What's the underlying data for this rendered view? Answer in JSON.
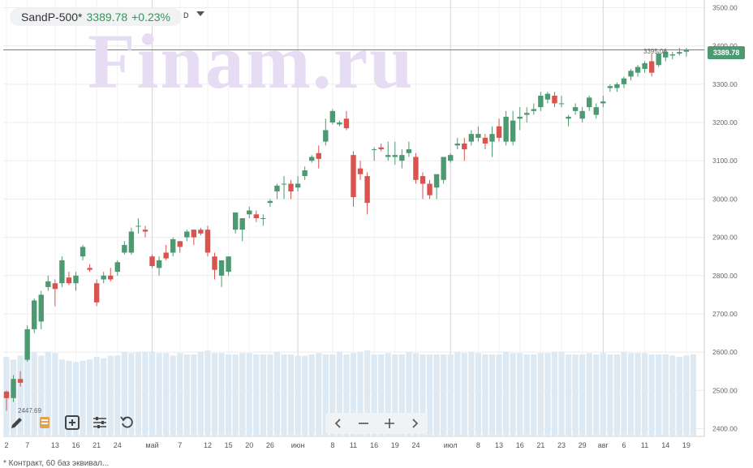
{
  "header": {
    "ticker": "SandP-500*",
    "last_price": "3389.78",
    "change": "+0.23%",
    "period": "D"
  },
  "watermark": "Finam.ru",
  "last_price_tag": "3389.78",
  "max_label": "3395.06",
  "min_label": "2447.69",
  "footnote": "* Контракт, 60 баз эквивал...",
  "colors": {
    "up": "#4d9a72",
    "down": "#d9534f",
    "volume": "#dde9f3",
    "grid": "#ececec",
    "price_line": "#4d9a72"
  },
  "toolbar_icons": [
    "pencil-icon",
    "layers-icon",
    "add-indicator-icon",
    "settings-sliders-icon",
    "reset-icon"
  ],
  "nav_icons": [
    "chevron-left-icon",
    "zoom-out-icon",
    "zoom-in-icon",
    "chevron-right-icon"
  ],
  "chart_data": {
    "type": "candlestick",
    "y_range": [
      2380,
      3520
    ],
    "yticks": [
      2400,
      2500,
      2600,
      2700,
      2800,
      2900,
      3000,
      3100,
      3200,
      3300,
      3400,
      3500
    ],
    "ytick_labels": [
      "2400.00",
      "2500.00",
      "2600.00",
      "2700.00",
      "2800.00",
      "2900.00",
      "3000.00",
      "3100.00",
      "3200.00",
      "3300.00",
      "3400.00",
      "3500.00"
    ],
    "x_ticks": [
      {
        "i": 0,
        "label": "2"
      },
      {
        "i": 3,
        "label": "7"
      },
      {
        "i": 7,
        "label": "13"
      },
      {
        "i": 10,
        "label": "16"
      },
      {
        "i": 13,
        "label": "21"
      },
      {
        "i": 16,
        "label": "24"
      },
      {
        "i": 21,
        "label": "май"
      },
      {
        "i": 25,
        "label": "7"
      },
      {
        "i": 29,
        "label": "12"
      },
      {
        "i": 32,
        "label": "15"
      },
      {
        "i": 35,
        "label": "20"
      },
      {
        "i": 38,
        "label": "26"
      },
      {
        "i": 42,
        "label": "июн"
      },
      {
        "i": 47,
        "label": "8"
      },
      {
        "i": 50,
        "label": "11"
      },
      {
        "i": 53,
        "label": "16"
      },
      {
        "i": 56,
        "label": "19"
      },
      {
        "i": 59,
        "label": "24"
      },
      {
        "i": 64,
        "label": "июл"
      },
      {
        "i": 68,
        "label": "8"
      },
      {
        "i": 71,
        "label": "13"
      },
      {
        "i": 74,
        "label": "16"
      },
      {
        "i": 77,
        "label": "21"
      },
      {
        "i": 80,
        "label": "23"
      },
      {
        "i": 83,
        "label": "29"
      },
      {
        "i": 86,
        "label": "авг"
      },
      {
        "i": 89,
        "label": "6"
      },
      {
        "i": 92,
        "label": "11"
      },
      {
        "i": 95,
        "label": "14"
      },
      {
        "i": 98,
        "label": "19"
      }
    ],
    "month_dividers": [
      21,
      42,
      64,
      86
    ],
    "candles": [
      [
        2497,
        2500,
        2447,
        2480
      ],
      [
        2480,
        2540,
        2470,
        2530
      ],
      [
        2530,
        2550,
        2510,
        2520
      ],
      [
        2580,
        2670,
        2575,
        2660
      ],
      [
        2660,
        2740,
        2650,
        2735
      ],
      [
        2680,
        2760,
        2660,
        2750
      ],
      [
        2770,
        2800,
        2760,
        2785
      ],
      [
        2780,
        2790,
        2720,
        2765
      ],
      [
        2780,
        2850,
        2770,
        2840
      ],
      [
        2795,
        2810,
        2775,
        2780
      ],
      [
        2780,
        2810,
        2760,
        2800
      ],
      [
        2850,
        2880,
        2840,
        2875
      ],
      [
        2820,
        2830,
        2810,
        2815
      ],
      [
        2780,
        2790,
        2720,
        2730
      ],
      [
        2790,
        2810,
        2780,
        2800
      ],
      [
        2800,
        2820,
        2785,
        2790
      ],
      [
        2810,
        2840,
        2800,
        2835
      ],
      [
        2860,
        2890,
        2855,
        2880
      ],
      [
        2860,
        2925,
        2855,
        2915
      ],
      [
        2930,
        2950,
        2910,
        2930
      ],
      [
        2920,
        2930,
        2900,
        2915
      ],
      [
        2850,
        2855,
        2820,
        2825
      ],
      [
        2820,
        2850,
        2800,
        2840
      ],
      [
        2860,
        2880,
        2840,
        2845
      ],
      [
        2860,
        2900,
        2850,
        2895
      ],
      [
        2890,
        2890,
        2860,
        2875
      ],
      [
        2900,
        2920,
        2890,
        2915
      ],
      [
        2920,
        2920,
        2880,
        2900
      ],
      [
        2920,
        2925,
        2905,
        2910
      ],
      [
        2920,
        2930,
        2850,
        2860
      ],
      [
        2850,
        2860,
        2790,
        2815
      ],
      [
        2800,
        2840,
        2770,
        2840
      ],
      [
        2810,
        2850,
        2800,
        2850
      ],
      [
        2920,
        2960,
        2910,
        2965
      ],
      [
        2920,
        2950,
        2890,
        2950
      ],
      [
        2960,
        2980,
        2950,
        2970
      ],
      [
        2960,
        2970,
        2940,
        2950
      ],
      [
        2950,
        2960,
        2930,
        2950
      ],
      [
        2990,
        3000,
        2980,
        2995
      ],
      [
        3020,
        3040,
        3000,
        3035
      ],
      [
        3040,
        3060,
        3000,
        3040
      ],
      [
        3040,
        3050,
        3000,
        3020
      ],
      [
        3030,
        3060,
        3020,
        3040
      ],
      [
        3060,
        3085,
        3050,
        3075
      ],
      [
        3100,
        3115,
        3095,
        3110
      ],
      [
        3120,
        3140,
        3080,
        3105
      ],
      [
        3150,
        3210,
        3140,
        3180
      ],
      [
        3200,
        3235,
        3195,
        3230
      ],
      [
        3195,
        3205,
        3190,
        3200
      ],
      [
        3210,
        3230,
        3180,
        3185
      ],
      [
        3115,
        3125,
        2980,
        3005
      ],
      [
        3080,
        3100,
        3050,
        3065
      ],
      [
        3060,
        3070,
        2960,
        2990
      ],
      [
        3130,
        3135,
        3100,
        3130
      ],
      [
        3135,
        3145,
        3125,
        3130
      ],
      [
        3110,
        3150,
        3100,
        3115
      ],
      [
        3110,
        3150,
        3090,
        3115
      ],
      [
        3100,
        3130,
        3080,
        3115
      ],
      [
        3120,
        3150,
        3110,
        3130
      ],
      [
        3110,
        3120,
        3040,
        3050
      ],
      [
        3060,
        3070,
        3000,
        3040
      ],
      [
        3040,
        3050,
        3000,
        3010
      ],
      [
        3030,
        3060,
        3000,
        3065
      ],
      [
        3050,
        3110,
        3040,
        3110
      ],
      [
        3100,
        3120,
        3095,
        3115
      ],
      [
        3140,
        3160,
        3130,
        3145
      ],
      [
        3145,
        3160,
        3100,
        3130
      ],
      [
        3150,
        3180,
        3140,
        3170
      ],
      [
        3160,
        3190,
        3150,
        3170
      ],
      [
        3160,
        3170,
        3130,
        3145
      ],
      [
        3150,
        3190,
        3110,
        3170
      ],
      [
        3190,
        3210,
        3150,
        3160
      ],
      [
        3150,
        3230,
        3140,
        3215
      ],
      [
        3150,
        3230,
        3140,
        3205
      ],
      [
        3210,
        3240,
        3180,
        3215
      ],
      [
        3220,
        3240,
        3200,
        3225
      ],
      [
        3230,
        3250,
        3220,
        3235
      ],
      [
        3240,
        3280,
        3230,
        3270
      ],
      [
        3260,
        3280,
        3250,
        3275
      ],
      [
        3270,
        3280,
        3240,
        3250
      ],
      [
        3250,
        3270,
        3240,
        3250
      ],
      [
        3210,
        3220,
        3190,
        3215
      ],
      [
        3230,
        3250,
        3220,
        3240
      ],
      [
        3210,
        3240,
        3200,
        3230
      ],
      [
        3240,
        3270,
        3230,
        3265
      ],
      [
        3220,
        3250,
        3210,
        3240
      ],
      [
        3250,
        3270,
        3240,
        3255
      ],
      [
        3290,
        3300,
        3280,
        3295
      ],
      [
        3290,
        3305,
        3280,
        3300
      ],
      [
        3300,
        3320,
        3290,
        3315
      ],
      [
        3320,
        3340,
        3310,
        3335
      ],
      [
        3330,
        3350,
        3320,
        3345
      ],
      [
        3340,
        3360,
        3330,
        3355
      ],
      [
        3360,
        3380,
        3320,
        3330
      ],
      [
        3350,
        3385,
        3345,
        3380
      ],
      [
        3370,
        3390,
        3360,
        3385
      ],
      [
        3375,
        3385,
        3365,
        3378
      ],
      [
        3380,
        3395,
        3375,
        3384
      ],
      [
        3385,
        3395,
        3372,
        3389
      ]
    ],
    "volumes": [
      0.62,
      0.6,
      0.63,
      0.66,
      0.66,
      0.63,
      0.66,
      0.65,
      0.6,
      0.59,
      0.58,
      0.59,
      0.6,
      0.62,
      0.61,
      0.63,
      0.63,
      0.66,
      0.65,
      0.66,
      0.66,
      0.66,
      0.65,
      0.65,
      0.63,
      0.65,
      0.64,
      0.64,
      0.66,
      0.67,
      0.65,
      0.65,
      0.64,
      0.64,
      0.65,
      0.65,
      0.64,
      0.64,
      0.64,
      0.66,
      0.64,
      0.64,
      0.63,
      0.63,
      0.64,
      0.65,
      0.64,
      0.64,
      0.66,
      0.64,
      0.65,
      0.66,
      0.67,
      0.64,
      0.64,
      0.65,
      0.64,
      0.64,
      0.66,
      0.65,
      0.64,
      0.64,
      0.64,
      0.64,
      0.64,
      0.66,
      0.65,
      0.66,
      0.65,
      0.64,
      0.64,
      0.64,
      0.66,
      0.65,
      0.65,
      0.64,
      0.64,
      0.65,
      0.65,
      0.66,
      0.66,
      0.64,
      0.64,
      0.64,
      0.65,
      0.64,
      0.65,
      0.64,
      0.64,
      0.66,
      0.65,
      0.65,
      0.65,
      0.64,
      0.64,
      0.64,
      0.63,
      0.62,
      0.63,
      0.64
    ]
  }
}
